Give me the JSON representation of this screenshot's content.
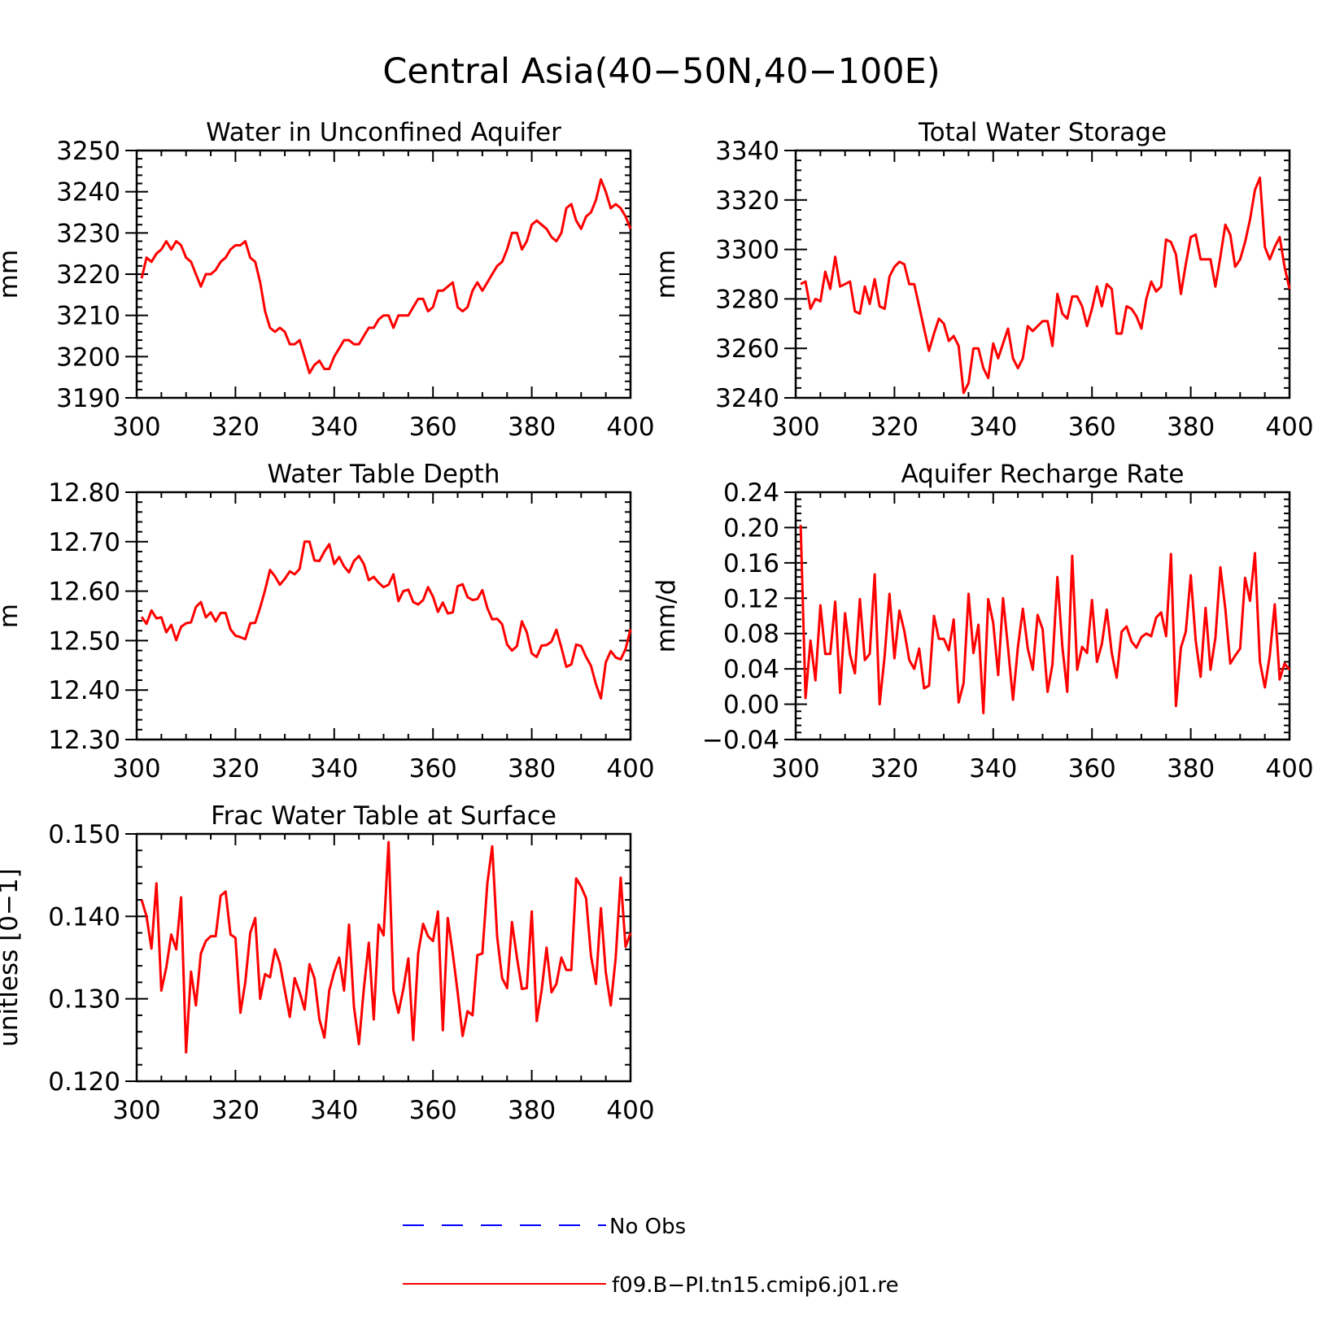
{
  "title": "Central Asia(40−50N,40−100E)",
  "colors": {
    "series": "#ff0000",
    "obs": "#0000ff",
    "axis": "#000000"
  },
  "legend": [
    {
      "label": "No Obs",
      "style": "dashed",
      "color": "#0000ff"
    },
    {
      "label": "f09.B−PI.tn15.cmip6.j01.re",
      "style": "solid",
      "color": "#ff0000"
    }
  ],
  "chart_data": [
    {
      "type": "line",
      "title": "Water in Unconfined Aquifer",
      "xlabel": "",
      "ylabel": "mm",
      "xlim": [
        300,
        400
      ],
      "ylim": [
        3190,
        3250
      ],
      "xticks": [
        "300",
        "320",
        "340",
        "360",
        "380",
        "400"
      ],
      "yticks": [
        "3190",
        "3200",
        "3210",
        "3220",
        "3230",
        "3240",
        "3250"
      ],
      "series": [
        {
          "x_start": 301,
          "values": [
            3219,
            3224,
            3223,
            3225,
            3226,
            3228,
            3226,
            3228,
            3227,
            3224,
            3223,
            3220,
            3217,
            3220,
            3220,
            3221,
            3223,
            3224,
            3226,
            3227,
            3227,
            3228,
            3224,
            3223,
            3218,
            3211,
            3207,
            3206,
            3207,
            3206,
            3203,
            3203,
            3204,
            3200,
            3196,
            3198,
            3199,
            3197,
            3197,
            3200,
            3202,
            3204,
            3204,
            3203,
            3203,
            3205,
            3207,
            3207,
            3209,
            3210,
            3210,
            3207,
            3210,
            3210,
            3210,
            3212,
            3214,
            3214,
            3211,
            3212,
            3216,
            3216,
            3217,
            3218,
            3212,
            3211,
            3212,
            3216,
            3218,
            3216,
            3218,
            3220,
            3222,
            3223,
            3226,
            3230,
            3230,
            3226,
            3228,
            3232,
            3233,
            3232,
            3231,
            3229,
            3228,
            3230,
            3236,
            3237,
            3233,
            3231,
            3234,
            3235,
            3238,
            3243,
            3240,
            3236,
            3237,
            3236,
            3234,
            3231
          ]
        }
      ]
    },
    {
      "type": "line",
      "title": "Total Water Storage",
      "xlabel": "",
      "ylabel": "mm",
      "xlim": [
        300,
        400
      ],
      "ylim": [
        3240,
        3340
      ],
      "xticks": [
        "300",
        "320",
        "340",
        "360",
        "380",
        "400"
      ],
      "yticks": [
        "3240",
        "3260",
        "3280",
        "3300",
        "3320",
        "3340"
      ],
      "series": [
        {
          "x_start": 301,
          "values": [
            3286,
            3287,
            3276,
            3280,
            3279,
            3291,
            3284,
            3297,
            3285,
            3286,
            3287,
            3275,
            3274,
            3285,
            3278,
            3288,
            3277,
            3276,
            3289,
            3293,
            3295,
            3294,
            3286,
            3286,
            3277,
            3268,
            3259,
            3266,
            3272,
            3270,
            3263,
            3265,
            3261,
            3242,
            3246,
            3260,
            3260,
            3252,
            3248,
            3262,
            3256,
            3262,
            3268,
            3256,
            3252,
            3256,
            3269,
            3267,
            3269,
            3271,
            3271,
            3261,
            3282,
            3274,
            3272,
            3281,
            3281,
            3277,
            3269,
            3276,
            3285,
            3277,
            3286,
            3284,
            3266,
            3266,
            3277,
            3276,
            3273,
            3268,
            3280,
            3287,
            3283,
            3285,
            3304,
            3303,
            3298,
            3282,
            3294,
            3305,
            3306,
            3296,
            3296,
            3296,
            3285,
            3297,
            3310,
            3306,
            3293,
            3296,
            3303,
            3312,
            3324,
            3329,
            3301,
            3296,
            3301,
            3305,
            3293,
            3284
          ]
        }
      ]
    },
    {
      "type": "line",
      "title": "Water Table Depth",
      "xlabel": "",
      "ylabel": "m",
      "xlim": [
        300,
        400
      ],
      "ylim": [
        12.3,
        12.8
      ],
      "xticks": [
        "300",
        "320",
        "340",
        "360",
        "380",
        "400"
      ],
      "yticks": [
        "12.30",
        "12.40",
        "12.50",
        "12.60",
        "12.70",
        "12.80"
      ],
      "series": [
        {
          "x_start": 301,
          "values": [
            12.548,
            12.534,
            12.561,
            12.545,
            12.547,
            12.517,
            12.532,
            12.501,
            12.528,
            12.535,
            12.537,
            12.568,
            12.578,
            12.547,
            12.557,
            12.539,
            12.556,
            12.556,
            12.523,
            12.51,
            12.507,
            12.503,
            12.535,
            12.536,
            12.567,
            12.602,
            12.643,
            12.63,
            12.613,
            12.625,
            12.64,
            12.634,
            12.645,
            12.7,
            12.7,
            12.662,
            12.661,
            12.68,
            12.695,
            12.655,
            12.669,
            12.65,
            12.638,
            12.661,
            12.671,
            12.655,
            12.622,
            12.629,
            12.617,
            12.608,
            12.613,
            12.634,
            12.58,
            12.6,
            12.603,
            12.578,
            12.573,
            12.582,
            12.608,
            12.589,
            12.558,
            12.577,
            12.555,
            12.557,
            12.61,
            12.614,
            12.588,
            12.582,
            12.584,
            12.602,
            12.566,
            12.543,
            12.544,
            12.533,
            12.492,
            12.48,
            12.489,
            12.539,
            12.517,
            12.474,
            12.467,
            12.49,
            12.491,
            12.498,
            12.522,
            12.486,
            12.447,
            12.452,
            12.492,
            12.489,
            12.467,
            12.449,
            12.412,
            12.383,
            12.456,
            12.479,
            12.466,
            12.462,
            12.483,
            12.523
          ]
        }
      ]
    },
    {
      "type": "line",
      "title": "Aquifer Recharge Rate",
      "xlabel": "",
      "ylabel": "mm/d",
      "xlim": [
        300,
        400
      ],
      "ylim": [
        -0.04,
        0.24
      ],
      "xticks": [
        "300",
        "320",
        "340",
        "360",
        "380",
        "400"
      ],
      "yticks": [
        "−0.04",
        "0.00",
        "0.04",
        "0.08",
        "0.12",
        "0.16",
        "0.20",
        "0.24"
      ],
      "series": [
        {
          "x_start": 301,
          "values": [
            0.203,
            0.007,
            0.072,
            0.027,
            0.112,
            0.057,
            0.057,
            0.116,
            0.013,
            0.103,
            0.056,
            0.035,
            0.119,
            0.05,
            0.057,
            0.147,
            0.0,
            0.054,
            0.125,
            0.052,
            0.106,
            0.083,
            0.05,
            0.04,
            0.063,
            0.018,
            0.021,
            0.1,
            0.074,
            0.074,
            0.061,
            0.096,
            0.002,
            0.024,
            0.125,
            0.058,
            0.09,
            -0.01,
            0.119,
            0.092,
            0.033,
            0.12,
            0.064,
            0.005,
            0.065,
            0.108,
            0.063,
            0.039,
            0.101,
            0.085,
            0.014,
            0.045,
            0.144,
            0.065,
            0.014,
            0.168,
            0.039,
            0.065,
            0.058,
            0.118,
            0.048,
            0.068,
            0.107,
            0.058,
            0.03,
            0.082,
            0.088,
            0.071,
            0.064,
            0.076,
            0.08,
            0.077,
            0.098,
            0.104,
            0.077,
            0.17,
            -0.002,
            0.064,
            0.082,
            0.146,
            0.072,
            0.031,
            0.109,
            0.039,
            0.075,
            0.155,
            0.108,
            0.046,
            0.055,
            0.063,
            0.143,
            0.117,
            0.171,
            0.048,
            0.019,
            0.055,
            0.113,
            0.028,
            0.046,
            0.039
          ]
        }
      ]
    },
    {
      "type": "line",
      "title": "Frac Water Table at Surface",
      "xlabel": "",
      "ylabel": "unitless [0−1]",
      "xlim": [
        300,
        400
      ],
      "ylim": [
        0.12,
        0.15
      ],
      "xticks": [
        "300",
        "320",
        "340",
        "360",
        "380",
        "400"
      ],
      "yticks": [
        "0.120",
        "0.130",
        "0.140",
        "0.150"
      ],
      "series": [
        {
          "x_start": 301,
          "values": [
            0.142,
            0.14,
            0.1361,
            0.144,
            0.131,
            0.1338,
            0.1378,
            0.136,
            0.1423,
            0.1235,
            0.1333,
            0.1292,
            0.1355,
            0.137,
            0.1376,
            0.1376,
            0.1425,
            0.143,
            0.1378,
            0.1374,
            0.1283,
            0.132,
            0.138,
            0.1398,
            0.13,
            0.133,
            0.1326,
            0.136,
            0.1343,
            0.131,
            0.1278,
            0.1325,
            0.1308,
            0.1287,
            0.1342,
            0.1325,
            0.1275,
            0.1253,
            0.131,
            0.1333,
            0.135,
            0.131,
            0.139,
            0.129,
            0.1245,
            0.1312,
            0.1368,
            0.1275,
            0.139,
            0.1377,
            0.149,
            0.131,
            0.1283,
            0.1312,
            0.1349,
            0.125,
            0.1355,
            0.1391,
            0.1376,
            0.137,
            0.1406,
            0.1262,
            0.1398,
            0.1355,
            0.1308,
            0.1255,
            0.1285,
            0.128,
            0.1353,
            0.1355,
            0.144,
            0.1485,
            0.1375,
            0.1325,
            0.1313,
            0.1393,
            0.135,
            0.1312,
            0.1313,
            0.1406,
            0.1273,
            0.131,
            0.1362,
            0.1308,
            0.1318,
            0.135,
            0.1335,
            0.1335,
            0.1446,
            0.1436,
            0.1422,
            0.1352,
            0.1318,
            0.141,
            0.1332,
            0.1292,
            0.135,
            0.1447,
            0.1363,
            0.138
          ]
        }
      ]
    }
  ]
}
